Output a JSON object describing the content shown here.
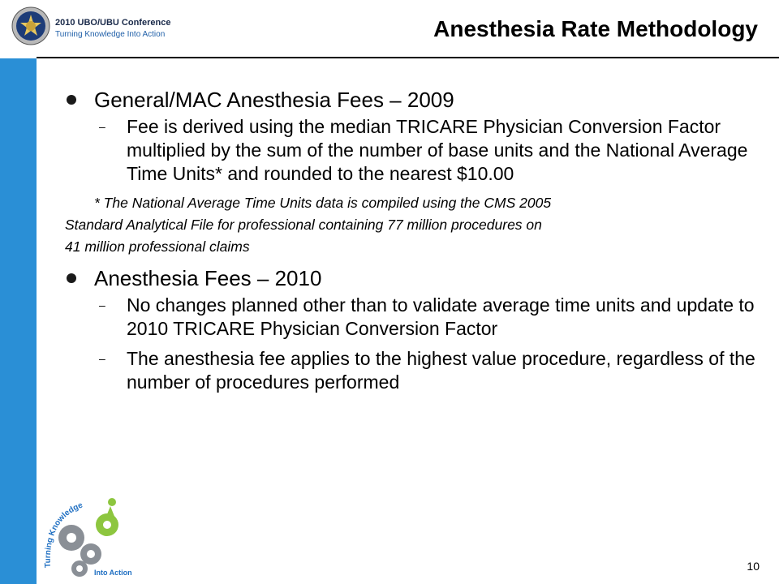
{
  "header": {
    "conference_name": "2010 UBO/UBU Conference",
    "conference_tagline": "Turning Knowledge Into Action",
    "title": "Anesthesia Rate Methodology"
  },
  "bullets": [
    {
      "heading": "General/MAC Anesthesia Fees – 2009",
      "subs": [
        "Fee is derived using the median TRICARE Physician Conversion Factor multiplied by the sum of the number of base units and the National Average Time Units*  and rounded to the nearest $10.00"
      ],
      "note_lines": [
        "* The National Average Time Units data is compiled using the CMS 2005",
        "Standard Analytical File for professional containing 77 million procedures on",
        "41 million professional claims"
      ]
    },
    {
      "heading": "Anesthesia Fees – 2010",
      "subs": [
        "No changes planned other than to validate average time units  and update to 2010 TRICARE Physician Conversion Factor",
        "The anesthesia fee applies to the highest value procedure, regardless of the number of procedures performed"
      ]
    }
  ],
  "logo": {
    "line1": "Turning Knowledge",
    "line2": "Into Action"
  },
  "page_number": "10",
  "colors": {
    "sidebar": "#2a8fd6",
    "gear_gray": "#8a8f96",
    "gear_green": "#8dc63f",
    "logo_text_blue": "#1f6fc2"
  }
}
